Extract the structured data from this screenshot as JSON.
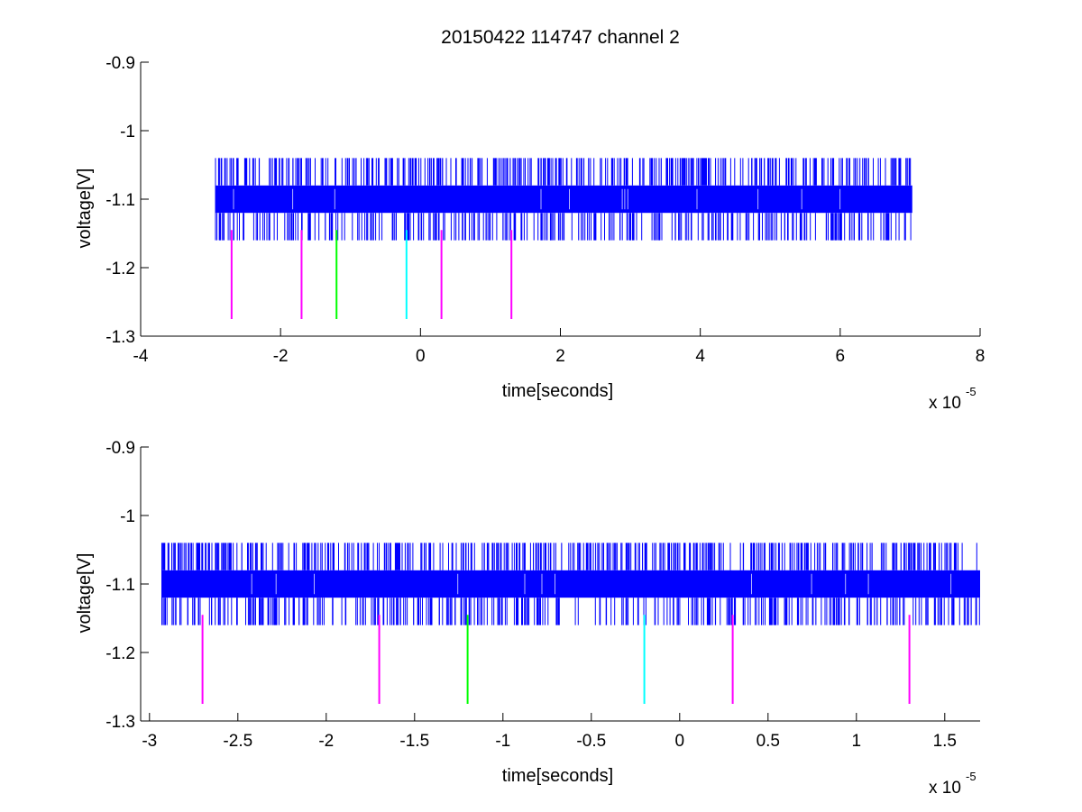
{
  "chart_data": [
    {
      "type": "line",
      "title": "20150422 114747 channel 2",
      "xlabel": "time[seconds]",
      "ylabel": "voltage[V]",
      "x_exponent_label": "x 10",
      "x_exponent": "-5",
      "xlim": [
        -4,
        8
      ],
      "ylim": [
        -1.3,
        -0.9
      ],
      "x_ticks": [
        -4,
        -2,
        0,
        2,
        4,
        6,
        8
      ],
      "x_tick_labels": [
        "-4",
        "-2",
        "0",
        "2",
        "4",
        "6",
        "8"
      ],
      "y_ticks": [
        -0.9,
        -1,
        -1.1,
        -1.2,
        -1.3
      ],
      "y_tick_labels": [
        "-0.9",
        "-1",
        "-1.1",
        "-1.2",
        "-1.3"
      ],
      "series": [
        {
          "color": "#0000ff",
          "x_range": [
            -2.93,
            7.03
          ],
          "baseline_band": [
            -1.12,
            -1.08
          ],
          "spike_levels": [
            -1.04,
            -1.16
          ]
        }
      ],
      "markers": [
        {
          "x": -2.7,
          "y_top": -1.145,
          "y_bottom": -1.275,
          "color": "#ff00ff"
        },
        {
          "x": -1.7,
          "y_top": -1.145,
          "y_bottom": -1.275,
          "color": "#ff00ff"
        },
        {
          "x": -1.2,
          "y_top": -1.145,
          "y_bottom": -1.275,
          "color": "#00ff00"
        },
        {
          "x": -0.2,
          "y_top": -1.145,
          "y_bottom": -1.275,
          "color": "#00ffff"
        },
        {
          "x": 0.3,
          "y_top": -1.145,
          "y_bottom": -1.275,
          "color": "#ff00ff"
        },
        {
          "x": 1.3,
          "y_top": -1.145,
          "y_bottom": -1.275,
          "color": "#ff00ff"
        }
      ],
      "grid": false
    },
    {
      "type": "line",
      "xlabel": "time[seconds]",
      "ylabel": "voltage[V]",
      "x_exponent_label": "x 10",
      "x_exponent": "-5",
      "xlim": [
        -3.05,
        1.7
      ],
      "ylim": [
        -1.3,
        -0.9
      ],
      "x_ticks": [
        -3,
        -2.5,
        -2,
        -1.5,
        -1,
        -0.5,
        0,
        0.5,
        1,
        1.5
      ],
      "x_tick_labels": [
        "-3",
        "-2.5",
        "-2",
        "-1.5",
        "-1",
        "-0.5",
        "0",
        "0.5",
        "1",
        "1.5"
      ],
      "y_ticks": [
        -0.9,
        -1,
        -1.1,
        -1.2,
        -1.3
      ],
      "y_tick_labels": [
        "-0.9",
        "-1",
        "-1.1",
        "-1.2",
        "-1.3"
      ],
      "series": [
        {
          "color": "#0000ff",
          "x_range": [
            -2.93,
            1.7
          ],
          "baseline_band": [
            -1.12,
            -1.08
          ],
          "spike_levels": [
            -1.04,
            -1.16
          ]
        }
      ],
      "markers": [
        {
          "x": -2.7,
          "y_top": -1.145,
          "y_bottom": -1.275,
          "color": "#ff00ff"
        },
        {
          "x": -1.7,
          "y_top": -1.145,
          "y_bottom": -1.275,
          "color": "#ff00ff"
        },
        {
          "x": -1.2,
          "y_top": -1.145,
          "y_bottom": -1.275,
          "color": "#00ff00"
        },
        {
          "x": -0.2,
          "y_top": -1.145,
          "y_bottom": -1.275,
          "color": "#00ffff"
        },
        {
          "x": 0.3,
          "y_top": -1.145,
          "y_bottom": -1.275,
          "color": "#ff00ff"
        },
        {
          "x": 1.3,
          "y_top": -1.145,
          "y_bottom": -1.275,
          "color": "#ff00ff"
        }
      ],
      "grid": false
    }
  ]
}
